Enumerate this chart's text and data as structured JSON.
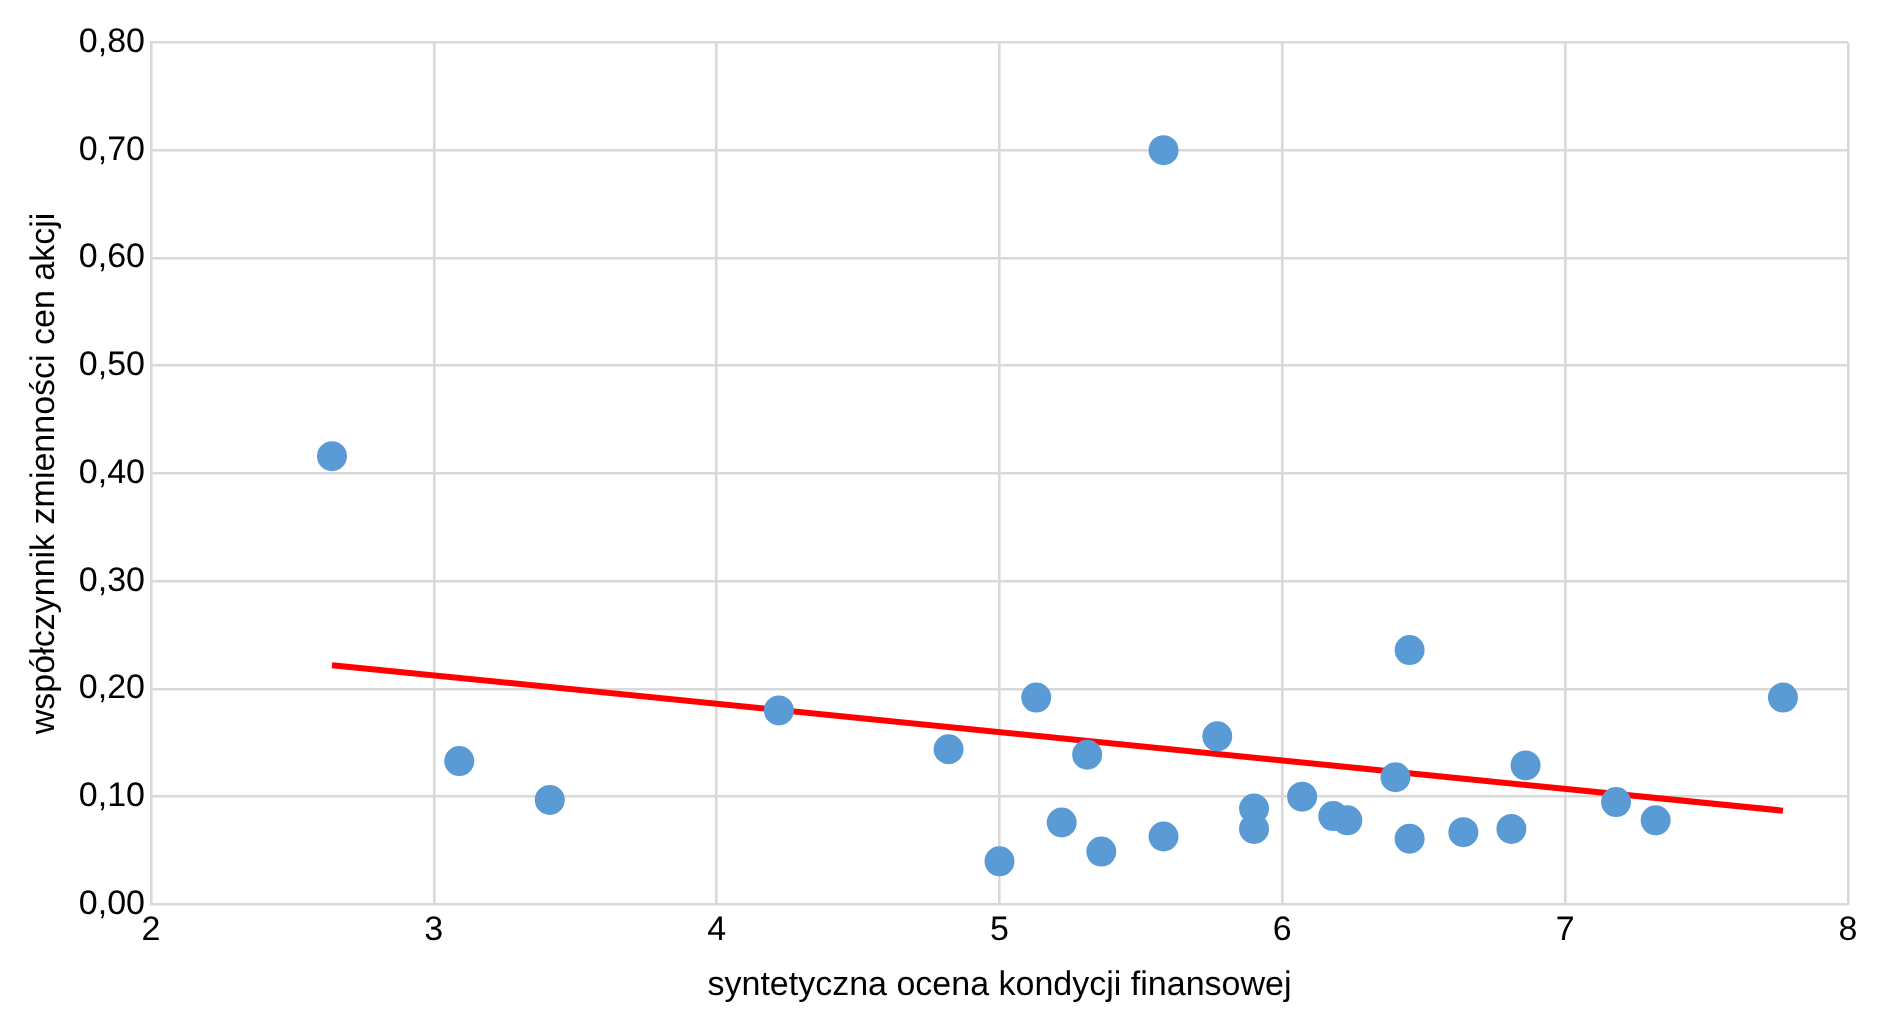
{
  "chart_data": {
    "type": "scatter",
    "xlabel": "syntetyczna ocena kondycji finansowej",
    "ylabel": "współczynnik zmienności cen akcji",
    "xlim": [
      2,
      8
    ],
    "xticks": [
      2,
      3,
      4,
      5,
      6,
      7,
      8
    ],
    "ylim": [
      0,
      0.8
    ],
    "yticks": [
      {
        "value": 0,
        "label": "0,00"
      },
      {
        "value": 0.1,
        "label": "0,10"
      },
      {
        "value": 0.2,
        "label": "0,20"
      },
      {
        "value": 0.3,
        "label": "0,30"
      },
      {
        "value": 0.4,
        "label": "0,40"
      },
      {
        "value": 0.5,
        "label": "0,50"
      },
      {
        "value": 0.6,
        "label": "0,60"
      },
      {
        "value": 0.7,
        "label": "0,70"
      },
      {
        "value": 0.8,
        "label": "0,80"
      }
    ],
    "grid": true,
    "legend": false,
    "marker": "circle",
    "series": [
      {
        "type": "scatter",
        "color": "#5b9bd5",
        "x": [
          2.64,
          3.09,
          3.41,
          4.22,
          4.82,
          5.0,
          5.13,
          5.22,
          5.31,
          5.36,
          5.58,
          5.58,
          5.77,
          5.9,
          5.9,
          6.07,
          6.18,
          6.23,
          6.4,
          6.45,
          6.45,
          6.64,
          6.81,
          6.86,
          7.18,
          7.32,
          7.77
        ],
        "values": [
          0.416,
          0.133,
          0.097,
          0.18,
          0.144,
          0.04,
          0.192,
          0.076,
          0.139,
          0.049,
          0.7,
          0.063,
          0.156,
          0.089,
          0.07,
          0.1,
          0.082,
          0.078,
          0.118,
          0.236,
          0.061,
          0.067,
          0.07,
          0.129,
          0.095,
          0.078,
          0.192
        ]
      },
      {
        "type": "line",
        "color": "#ff0000",
        "line_style": "solid",
        "marker": "none",
        "x": [
          2.64,
          7.77
        ],
        "values": [
          0.222,
          0.087
        ]
      }
    ]
  }
}
